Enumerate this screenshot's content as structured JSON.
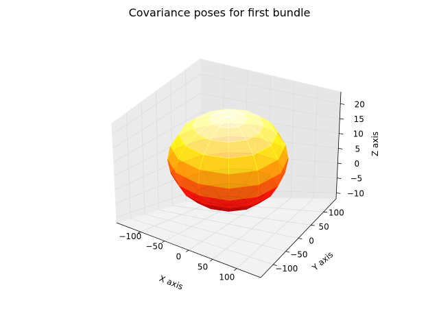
{
  "chart_data": {
    "type": "surface3d",
    "title": "Covariance poses for first bundle",
    "xlabel": "X axis",
    "ylabel": "Y axis",
    "zlabel": "Z axis",
    "xlim": [
      -150,
      150
    ],
    "ylim": [
      -150,
      150
    ],
    "zlim": [
      -12,
      24
    ],
    "xticks": [
      -100,
      -50,
      0,
      50,
      100
    ],
    "yticks": [
      -100,
      -50,
      0,
      50,
      100
    ],
    "zticks": [
      -10,
      -5,
      0,
      5,
      10,
      15,
      20
    ],
    "xtick_labels": [
      "−100",
      "−50",
      "0",
      "50",
      "100"
    ],
    "ytick_labels": [
      "−100",
      "−50",
      "0",
      "50",
      "100"
    ],
    "ztick_labels": [
      "−10",
      "−5",
      "0",
      "5",
      "10",
      "15",
      "20"
    ],
    "grid": true,
    "colormap": "hot",
    "alpha": 0.75,
    "surface": {
      "shape": "ellipsoid",
      "center": [
        0,
        0,
        8
      ],
      "radii": [
        110,
        110,
        14
      ],
      "u_steps": 12,
      "v_steps": 10
    }
  }
}
